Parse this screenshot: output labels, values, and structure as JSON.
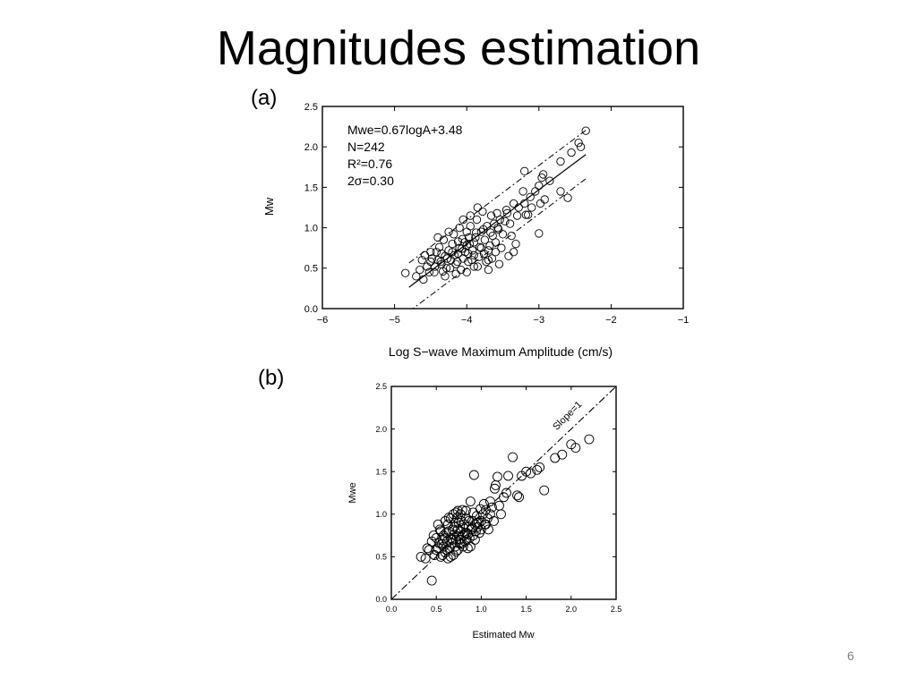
{
  "slide": {
    "title": "Magnitudes estimation",
    "page_number": "6"
  },
  "chart_data": [
    {
      "panel_label": "(a)",
      "type": "scatter",
      "xlabel": "Log S−wave Maximum Amplitude (cm/s)",
      "ylabel": "Mw",
      "xlim": [
        -6,
        -1
      ],
      "ylim": [
        0,
        2.5
      ],
      "xticks": [
        -6,
        -5,
        -4,
        -3,
        -2,
        -1
      ],
      "xtick_labels": [
        "−6",
        "−5",
        "−4",
        "−3",
        "−2",
        "−1"
      ],
      "yticks": [
        0,
        0.5,
        1,
        1.5,
        2,
        2.5
      ],
      "ytick_labels": [
        "0.0",
        "0.5",
        "1.0",
        "1.5",
        "2.0",
        "2.5"
      ],
      "annotations": [
        "Mwe=0.67logA+3.48",
        "N=242",
        "R²=0.76",
        "2σ=0.30"
      ],
      "fit_line": {
        "slope": 0.67,
        "intercept": 3.48,
        "x_range": [
          -4.8,
          -2.35
        ]
      },
      "band_lines": {
        "offset": 0.3,
        "x_range": [
          -4.8,
          -2.35
        ]
      },
      "points": [
        [
          -4.85,
          0.44
        ],
        [
          -4.7,
          0.4
        ],
        [
          -4.6,
          0.36
        ],
        [
          -4.65,
          0.48
        ],
        [
          -4.55,
          0.52
        ],
        [
          -4.5,
          0.58
        ],
        [
          -4.62,
          0.6
        ],
        [
          -4.58,
          0.66
        ],
        [
          -4.45,
          0.45
        ],
        [
          -4.4,
          0.6
        ],
        [
          -4.42,
          0.7
        ],
        [
          -4.38,
          0.76
        ],
        [
          -4.35,
          0.55
        ],
        [
          -4.3,
          0.65
        ],
        [
          -4.32,
          0.85
        ],
        [
          -4.28,
          0.5
        ],
        [
          -4.25,
          0.72
        ],
        [
          -4.22,
          0.6
        ],
        [
          -4.2,
          0.8
        ],
        [
          -4.18,
          0.92
        ],
        [
          -4.15,
          0.55
        ],
        [
          -4.12,
          0.68
        ],
        [
          -4.1,
          0.75
        ],
        [
          -4.08,
          0.48
        ],
        [
          -4.06,
          0.86
        ],
        [
          -4.05,
          0.62
        ],
        [
          -4.02,
          0.7
        ],
        [
          -4.0,
          0.95
        ],
        [
          -3.98,
          0.58
        ],
        [
          -3.96,
          0.8
        ],
        [
          -3.95,
          1.02
        ],
        [
          -3.92,
          0.72
        ],
        [
          -3.9,
          0.66
        ],
        [
          -3.88,
          0.88
        ],
        [
          -3.86,
          1.1
        ],
        [
          -3.85,
          0.52
        ],
        [
          -3.82,
          0.76
        ],
        [
          -3.8,
          0.95
        ],
        [
          -3.78,
          1.2
        ],
        [
          -3.76,
          0.68
        ],
        [
          -3.75,
          0.85
        ],
        [
          -3.72,
          1.02
        ],
        [
          -3.7,
          0.6
        ],
        [
          -3.68,
          0.78
        ],
        [
          -3.66,
          1.15
        ],
        [
          -3.64,
          0.9
        ],
        [
          -3.62,
          1.05
        ],
        [
          -3.6,
          0.82
        ],
        [
          -3.58,
          1.18
        ],
        [
          -3.56,
          0.98
        ],
        [
          -3.54,
          1.1
        ],
        [
          -3.52,
          0.75
        ],
        [
          -3.5,
          0.92
        ],
        [
          -3.45,
          1.22
        ],
        [
          -3.4,
          1.05
        ],
        [
          -3.38,
          0.9
        ],
        [
          -3.35,
          1.3
        ],
        [
          -3.32,
          0.8
        ],
        [
          -3.3,
          1.15
        ],
        [
          -3.28,
          1.25
        ],
        [
          -3.22,
          1.45
        ],
        [
          -3.2,
          1.3
        ],
        [
          -3.18,
          1.16
        ],
        [
          -3.15,
          1.16
        ],
        [
          -3.12,
          1.38
        ],
        [
          -3.1,
          1.25
        ],
        [
          -3.05,
          1.45
        ],
        [
          -3.0,
          1.52
        ],
        [
          -2.98,
          1.3
        ],
        [
          -2.96,
          1.62
        ],
        [
          -2.94,
          1.66
        ],
        [
          -2.92,
          1.35
        ],
        [
          -3.2,
          1.7
        ],
        [
          -3.0,
          0.93
        ],
        [
          -2.85,
          1.58
        ],
        [
          -2.7,
          1.45
        ],
        [
          -2.7,
          1.82
        ],
        [
          -2.55,
          1.93
        ],
        [
          -2.45,
          2.05
        ],
        [
          -2.42,
          2.0
        ],
        [
          -2.35,
          2.2
        ],
        [
          -2.6,
          1.37
        ],
        [
          -4.3,
          0.4
        ],
        [
          -4.15,
          0.43
        ],
        [
          -4.0,
          0.45
        ],
        [
          -3.9,
          0.52
        ],
        [
          -3.7,
          0.48
        ],
        [
          -3.55,
          0.55
        ],
        [
          -3.42,
          0.65
        ],
        [
          -3.35,
          0.7
        ],
        [
          -4.5,
          0.7
        ],
        [
          -4.4,
          0.88
        ],
        [
          -4.25,
          0.95
        ],
        [
          -4.1,
          1.0
        ],
        [
          -4.05,
          1.1
        ],
        [
          -3.95,
          1.15
        ],
        [
          -3.85,
          1.25
        ],
        [
          -4.2,
          0.7
        ],
        [
          -4.0,
          0.78
        ],
        [
          -3.9,
          0.82
        ],
        [
          -3.8,
          0.75
        ],
        [
          -3.7,
          0.72
        ],
        [
          -3.6,
          0.7
        ],
        [
          -4.35,
          0.68
        ],
        [
          -4.12,
          0.83
        ],
        [
          -3.98,
          0.68
        ],
        [
          -3.93,
          0.6
        ],
        [
          -3.83,
          0.64
        ],
        [
          -3.73,
          0.58
        ],
        [
          -3.65,
          0.62
        ],
        [
          -4.48,
          0.62
        ],
        [
          -4.36,
          0.58
        ],
        [
          -4.27,
          0.62
        ],
        [
          -4.17,
          0.66
        ],
        [
          -4.07,
          0.74
        ],
        [
          -4.03,
          0.82
        ],
        [
          -3.97,
          0.88
        ],
        [
          -3.87,
          0.94
        ],
        [
          -3.77,
          0.98
        ],
        [
          -3.67,
          0.94
        ],
        [
          -3.57,
          1.0
        ],
        [
          -3.47,
          1.08
        ],
        [
          -3.44,
          1.18
        ],
        [
          -4.52,
          0.45
        ],
        [
          -4.44,
          0.52
        ],
        [
          -4.33,
          0.46
        ],
        [
          -4.23,
          0.5
        ],
        [
          -4.13,
          0.58
        ]
      ]
    },
    {
      "panel_label": "(b)",
      "type": "scatter",
      "xlabel": "Estimated Mw",
      "ylabel": "Mwe",
      "xlim": [
        0,
        2.5
      ],
      "ylim": [
        0,
        2.5
      ],
      "xticks": [
        0,
        0.5,
        1,
        1.5,
        2,
        2.5
      ],
      "xtick_labels": [
        "0.0",
        "0.5",
        "1.0",
        "1.5",
        "2.0",
        "2.5"
      ],
      "yticks": [
        0,
        0.5,
        1,
        1.5,
        2,
        2.5
      ],
      "ytick_labels": [
        "0.0",
        "0.5",
        "1.0",
        "1.5",
        "2.0",
        "2.5"
      ],
      "reference_line": {
        "label": "Slope=1",
        "slope": 1
      },
      "points": [
        [
          0.33,
          0.5
        ],
        [
          0.38,
          0.48
        ],
        [
          0.42,
          0.58
        ],
        [
          0.45,
          0.22
        ],
        [
          0.45,
          0.68
        ],
        [
          0.48,
          0.52
        ],
        [
          0.5,
          0.72
        ],
        [
          0.52,
          0.6
        ],
        [
          0.54,
          0.82
        ],
        [
          0.55,
          0.5
        ],
        [
          0.56,
          0.65
        ],
        [
          0.58,
          0.75
        ],
        [
          0.6,
          0.55
        ],
        [
          0.6,
          0.92
        ],
        [
          0.62,
          0.68
        ],
        [
          0.63,
          0.48
        ],
        [
          0.64,
          0.8
        ],
        [
          0.65,
          0.6
        ],
        [
          0.66,
          0.95
        ],
        [
          0.68,
          0.7
        ],
        [
          0.69,
          0.52
        ],
        [
          0.7,
          0.85
        ],
        [
          0.71,
          0.62
        ],
        [
          0.72,
          1.02
        ],
        [
          0.73,
          0.74
        ],
        [
          0.74,
          0.58
        ],
        [
          0.75,
          0.9
        ],
        [
          0.76,
          0.7
        ],
        [
          0.77,
          0.8
        ],
        [
          0.78,
          0.65
        ],
        [
          0.79,
          1.05
        ],
        [
          0.8,
          0.75
        ],
        [
          0.81,
          0.88
        ],
        [
          0.82,
          0.68
        ],
        [
          0.83,
          0.95
        ],
        [
          0.84,
          0.78
        ],
        [
          0.85,
          0.6
        ],
        [
          0.86,
          0.85
        ],
        [
          0.87,
          0.72
        ],
        [
          0.88,
          1.15
        ],
        [
          0.89,
          0.82
        ],
        [
          0.9,
          0.92
        ],
        [
          0.91,
          0.75
        ],
        [
          0.92,
          1.46
        ],
        [
          0.93,
          0.88
        ],
        [
          0.94,
          0.8
        ],
        [
          0.95,
          0.98
        ],
        [
          0.96,
          0.85
        ],
        [
          0.98,
          0.78
        ],
        [
          1.0,
          0.92
        ],
        [
          1.02,
          1.0
        ],
        [
          1.04,
          0.88
        ],
        [
          1.05,
          1.05
        ],
        [
          1.07,
          0.95
        ],
        [
          1.08,
          0.82
        ],
        [
          1.1,
          1.0
        ],
        [
          1.12,
          1.08
        ],
        [
          1.14,
          0.92
        ],
        [
          1.15,
          1.3
        ],
        [
          1.16,
          1.34
        ],
        [
          1.18,
          1.44
        ],
        [
          1.2,
          1.1
        ],
        [
          1.22,
          1.0
        ],
        [
          1.25,
          1.2
        ],
        [
          1.28,
          1.25
        ],
        [
          1.3,
          1.45
        ],
        [
          1.35,
          1.67
        ],
        [
          1.4,
          1.22
        ],
        [
          1.42,
          1.2
        ],
        [
          1.45,
          1.45
        ],
        [
          1.5,
          1.5
        ],
        [
          1.55,
          1.48
        ],
        [
          1.62,
          1.52
        ],
        [
          1.65,
          1.55
        ],
        [
          1.7,
          1.28
        ],
        [
          1.82,
          1.66
        ],
        [
          1.9,
          1.7
        ],
        [
          2.0,
          1.82
        ],
        [
          2.05,
          1.78
        ],
        [
          2.2,
          1.88
        ],
        [
          0.4,
          0.6
        ],
        [
          0.47,
          0.75
        ],
        [
          0.52,
          0.88
        ],
        [
          0.57,
          0.7
        ],
        [
          0.61,
          0.78
        ],
        [
          0.66,
          0.72
        ],
        [
          0.71,
          0.9
        ],
        [
          0.74,
          0.82
        ],
        [
          0.78,
          0.92
        ],
        [
          0.82,
          0.78
        ],
        [
          0.86,
          0.92
        ],
        [
          0.88,
          0.62
        ],
        [
          0.93,
          0.7
        ],
        [
          0.97,
          0.9
        ],
        [
          1.0,
          0.82
        ],
        [
          1.05,
          0.88
        ],
        [
          0.58,
          0.62
        ],
        [
          0.62,
          0.58
        ],
        [
          0.67,
          0.66
        ],
        [
          0.72,
          0.7
        ],
        [
          0.76,
          0.66
        ],
        [
          0.8,
          0.62
        ],
        [
          0.84,
          0.7
        ],
        [
          0.68,
          0.82
        ],
        [
          0.73,
          0.96
        ],
        [
          0.63,
          0.88
        ],
        [
          0.77,
          1.0
        ],
        [
          0.83,
          1.04
        ],
        [
          0.91,
          1.02
        ],
        [
          0.99,
          1.06
        ],
        [
          1.03,
          1.12
        ],
        [
          1.1,
          1.15
        ],
        [
          0.55,
          0.8
        ],
        [
          0.6,
          0.72
        ],
        [
          0.7,
          0.76
        ],
        [
          0.75,
          0.74
        ],
        [
          0.8,
          0.84
        ],
        [
          0.85,
          0.76
        ],
        [
          0.9,
          0.84
        ],
        [
          0.95,
          0.9
        ],
        [
          0.64,
          0.96
        ],
        [
          0.69,
          1.0
        ],
        [
          0.74,
          1.04
        ],
        [
          0.5,
          0.58
        ],
        [
          0.53,
          0.66
        ],
        [
          0.57,
          0.52
        ],
        [
          0.66,
          0.5
        ],
        [
          0.72,
          0.56
        ]
      ]
    }
  ]
}
